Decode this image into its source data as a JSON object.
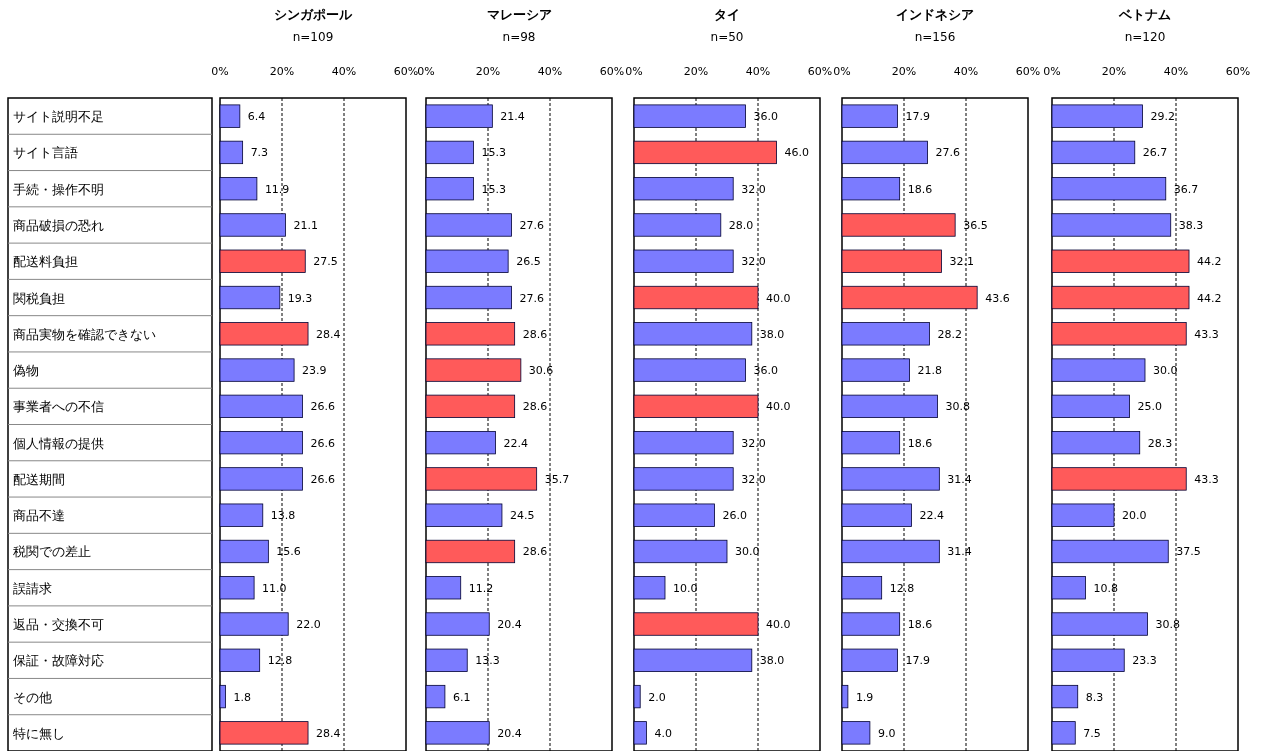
{
  "chart_data": [
    {
      "type": "bar",
      "orientation": "horizontal",
      "title": "シンガポール",
      "subtitle": "n=109",
      "categories": [
        "サイト説明不足",
        "サイト言語",
        "手続・操作不明",
        "商品破損の恐れ",
        "配送料負担",
        "関税負担",
        "商品実物を確認できない",
        "偽物",
        "事業者への不信",
        "個人情報の提供",
        "配送期間",
        "商品不達",
        "税関での差止",
        "誤請求",
        "返品・交換不可",
        "保証・故障対応",
        "その他",
        "特に無し"
      ],
      "values": [
        6.4,
        7.3,
        11.9,
        21.1,
        27.5,
        19.3,
        28.4,
        23.9,
        26.6,
        26.6,
        26.6,
        13.8,
        15.6,
        11.0,
        22.0,
        12.8,
        1.8,
        28.4
      ],
      "value_labels": [
        "6.4",
        "7.3",
        "11.9",
        "21.1",
        "27.5",
        "19.3",
        "28.4",
        "23.9",
        "26.6",
        "26.6",
        "26.6",
        "13.8",
        "15.6",
        "11.0",
        "22.0",
        "12.8",
        "1.8",
        "28.4"
      ],
      "colors": [
        "#7b7bff",
        "#7b7bff",
        "#7b7bff",
        "#7b7bff",
        "#ff5a5a",
        "#7b7bff",
        "#ff5a5a",
        "#7b7bff",
        "#7b7bff",
        "#7b7bff",
        "#7b7bff",
        "#7b7bff",
        "#7b7bff",
        "#7b7bff",
        "#7b7bff",
        "#7b7bff",
        "#7b7bff",
        "#ff5a5a"
      ],
      "xlim": [
        0,
        60
      ],
      "xticks": [
        {
          "value": 0,
          "label": "0%"
        },
        {
          "value": 20,
          "label": "20%"
        },
        {
          "value": 40,
          "label": "40%"
        },
        {
          "value": 60,
          "label": "60%"
        }
      ],
      "grid": "x"
    },
    {
      "type": "bar",
      "orientation": "horizontal",
      "title": "マレーシア",
      "subtitle": "n=98",
      "values": [
        21.4,
        15.3,
        15.3,
        27.6,
        26.5,
        27.6,
        28.6,
        30.6,
        28.6,
        22.4,
        35.7,
        24.5,
        28.6,
        11.2,
        20.4,
        13.3,
        6.1,
        20.4
      ],
      "value_labels": [
        "21.4",
        "15.3",
        "15.3",
        "27.6",
        "26.5",
        "27.6",
        "28.6",
        "30.6",
        "28.6",
        "22.4",
        "35.7",
        "24.5",
        "28.6",
        "11.2",
        "20.4",
        "13.3",
        "6.1",
        "20.4"
      ],
      "colors": [
        "#7b7bff",
        "#7b7bff",
        "#7b7bff",
        "#7b7bff",
        "#7b7bff",
        "#7b7bff",
        "#ff5a5a",
        "#ff5a5a",
        "#ff5a5a",
        "#7b7bff",
        "#ff5a5a",
        "#7b7bff",
        "#ff5a5a",
        "#7b7bff",
        "#7b7bff",
        "#7b7bff",
        "#7b7bff",
        "#7b7bff"
      ],
      "xlim": [
        0,
        60
      ],
      "xticks": [
        {
          "value": 0,
          "label": "0%"
        },
        {
          "value": 20,
          "label": "20%"
        },
        {
          "value": 40,
          "label": "40%"
        },
        {
          "value": 60,
          "label": "60%"
        }
      ],
      "grid": "x",
      "tick_labels": "x"
    },
    {
      "type": "bar",
      "orientation": "horizontal",
      "title": "タイ",
      "subtitle": "n=50",
      "values": [
        36.0,
        46.0,
        32.0,
        28.0,
        32.0,
        40.0,
        38.0,
        36.0,
        40.0,
        32.0,
        32.0,
        26.0,
        30.0,
        10.0,
        40.0,
        38.0,
        2.0,
        4.0
      ],
      "value_labels": [
        "36.0",
        "46.0",
        "32.0",
        "28.0",
        "32.0",
        "40.0",
        "38.0",
        "36.0",
        "40.0",
        "32.0",
        "32.0",
        "26.0",
        "30.0",
        "10.0",
        "40.0",
        "38.0",
        "2.0",
        "4.0"
      ],
      "colors": [
        "#7b7bff",
        "#ff5a5a",
        "#7b7bff",
        "#7b7bff",
        "#7b7bff",
        "#ff5a5a",
        "#7b7bff",
        "#7b7bff",
        "#ff5a5a",
        "#7b7bff",
        "#7b7bff",
        "#7b7bff",
        "#7b7bff",
        "#7b7bff",
        "#ff5a5a",
        "#7b7bff",
        "#7b7bff",
        "#7b7bff"
      ],
      "xlim": [
        0,
        60
      ],
      "xticks": [
        {
          "value": 0,
          "label": "0%"
        },
        {
          "value": 20,
          "label": "20%"
        },
        {
          "value": 40,
          "label": "40%"
        },
        {
          "value": 60,
          "label": "60%"
        }
      ],
      "grid": "x",
      "tick_labels": "x"
    },
    {
      "type": "bar",
      "orientation": "horizontal",
      "title": "インドネシア",
      "subtitle": "n=156",
      "values": [
        17.9,
        27.6,
        18.6,
        36.5,
        32.1,
        43.6,
        28.2,
        21.8,
        30.8,
        18.6,
        31.4,
        22.4,
        31.4,
        12.8,
        18.6,
        17.9,
        1.9,
        9.0
      ],
      "value_labels": [
        "17.9",
        "27.6",
        "18.6",
        "36.5",
        "32.1",
        "43.6",
        "28.2",
        "21.8",
        "30.8",
        "18.6",
        "31.4",
        "22.4",
        "31.4",
        "12.8",
        "18.6",
        "17.9",
        "1.9",
        "9.0"
      ],
      "colors": [
        "#7b7bff",
        "#7b7bff",
        "#7b7bff",
        "#ff5a5a",
        "#ff5a5a",
        "#ff5a5a",
        "#7b7bff",
        "#7b7bff",
        "#7b7bff",
        "#7b7bff",
        "#7b7bff",
        "#7b7bff",
        "#7b7bff",
        "#7b7bff",
        "#7b7bff",
        "#7b7bff",
        "#7b7bff",
        "#7b7bff"
      ],
      "xlim": [
        0,
        60
      ],
      "xticks": [
        {
          "value": 0,
          "label": "0%"
        },
        {
          "value": 20,
          "label": "20%"
        },
        {
          "value": 40,
          "label": "40%"
        },
        {
          "value": 60,
          "label": "60%"
        }
      ],
      "grid": "x",
      "tick_labels": "x"
    },
    {
      "type": "bar",
      "orientation": "horizontal",
      "title": "ベトナム",
      "subtitle": "n=120",
      "values": [
        29.2,
        26.7,
        36.7,
        38.3,
        44.2,
        44.2,
        43.3,
        30.0,
        25.0,
        28.3,
        43.3,
        20.0,
        37.5,
        10.8,
        30.8,
        23.3,
        8.3,
        7.5
      ],
      "value_labels": [
        "29.2",
        "26.7",
        "36.7",
        "38.3",
        "44.2",
        "44.2",
        "43.3",
        "30.0",
        "25.0",
        "28.3",
        "43.3",
        "20.0",
        "37.5",
        "10.8",
        "30.8",
        "23.3",
        "8.3",
        "7.5"
      ],
      "colors": [
        "#7b7bff",
        "#7b7bff",
        "#7b7bff",
        "#7b7bff",
        "#ff5a5a",
        "#ff5a5a",
        "#ff5a5a",
        "#7b7bff",
        "#7b7bff",
        "#7b7bff",
        "#ff5a5a",
        "#7b7bff",
        "#7b7bff",
        "#7b7bff",
        "#7b7bff",
        "#7b7bff",
        "#7b7bff",
        "#7b7bff"
      ],
      "xlim": [
        0,
        60
      ],
      "xticks": [
        {
          "value": 0,
          "label": "0%"
        },
        {
          "value": 20,
          "label": "20%"
        },
        {
          "value": 40,
          "label": "40%"
        },
        {
          "value": 60,
          "label": "60%"
        }
      ],
      "grid": "x",
      "tick_labels": "x"
    }
  ]
}
